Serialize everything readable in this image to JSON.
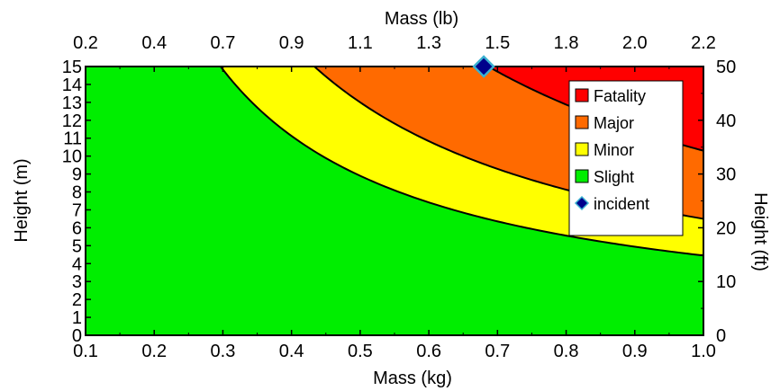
{
  "chart_data": {
    "type": "area",
    "x_bottom": {
      "label": "Mass (kg)",
      "range": [
        0.1,
        1.0
      ],
      "ticks": [
        0.1,
        0.2,
        0.3,
        0.4,
        0.5,
        0.6,
        0.7,
        0.8,
        0.9,
        1.0
      ],
      "tick_labels": [
        "0.1",
        "0.2",
        "0.3",
        "0.4",
        "0.5",
        "0.6",
        "0.7",
        "0.8",
        "0.9",
        "1.0"
      ]
    },
    "x_top": {
      "label": "Mass (lb)",
      "tick_labels": [
        "0.2",
        "0.4",
        "0.7",
        "0.9",
        "1.1",
        "1.3",
        "1.5",
        "1.8",
        "2.0",
        "2.2"
      ]
    },
    "y_left": {
      "label": "Height (m)",
      "range": [
        0,
        15
      ],
      "ticks": [
        0,
        1,
        2,
        3,
        4,
        5,
        6,
        7,
        8,
        9,
        10,
        11,
        12,
        13,
        14,
        15
      ],
      "tick_labels": [
        "0",
        "1",
        "2",
        "3",
        "4",
        "5",
        "6",
        "7",
        "8",
        "9",
        "10",
        "11",
        "12",
        "13",
        "14",
        "15"
      ]
    },
    "y_right": {
      "label": "Height (ft)",
      "range": [
        0,
        50
      ],
      "ticks": [
        0,
        10,
        20,
        30,
        40,
        50
      ],
      "tick_labels": [
        "0",
        "10",
        "20",
        "30",
        "40",
        "50"
      ]
    },
    "regions": [
      {
        "name": "Slight",
        "color": "#00ee00"
      },
      {
        "name": "Minor",
        "color": "#ffff00"
      },
      {
        "name": "Major",
        "color": "#ff6a00"
      },
      {
        "name": "Fatality",
        "color": "#ff0000"
      }
    ],
    "boundaries": [
      {
        "between": [
          "Slight",
          "Minor"
        ],
        "energy_constant": 4.45
      },
      {
        "between": [
          "Minor",
          "Major"
        ],
        "energy_constant": 6.5
      },
      {
        "between": [
          "Major",
          "Fatality"
        ],
        "energy_constant": 10.3
      }
    ],
    "incident": {
      "name": "incident",
      "mass_kg": 0.68,
      "height_m": 15,
      "color": "#00008b",
      "edge_color": "#3ab0d0"
    },
    "legend": {
      "position": "top-right",
      "entries": [
        {
          "label": "Fatality",
          "color": "#ff0000",
          "marker": "square"
        },
        {
          "label": "Major",
          "color": "#ff6a00",
          "marker": "square"
        },
        {
          "label": "Minor",
          "color": "#ffff00",
          "marker": "square"
        },
        {
          "label": "Slight",
          "color": "#00ee00",
          "marker": "square"
        },
        {
          "label": "incident",
          "color": "#00008b",
          "marker": "diamond"
        }
      ]
    }
  }
}
